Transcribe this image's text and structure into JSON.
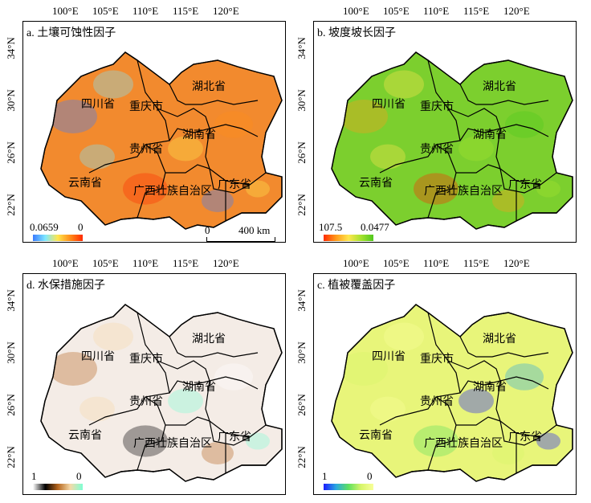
{
  "axes": {
    "lon_ticks": [
      "100°E",
      "105°E",
      "110°E",
      "115°E",
      "120°E"
    ],
    "lat_ticks": [
      "34°N",
      "30°N",
      "26°N",
      "22°N"
    ]
  },
  "provinces": [
    "四川省",
    "重庆市",
    "湖北省",
    "湖南省",
    "贵州省",
    "云南省",
    "广西壮族自治区",
    "广东省"
  ],
  "panels": [
    {
      "id": "a",
      "title": "a. 土壤可蚀性因子",
      "legend_min": "0.0659",
      "legend_max": "0",
      "scale_bar": {
        "zero": "0",
        "distance": "400 km"
      },
      "fill": "#f28a2e",
      "ramp": [
        "#3b7bff",
        "#7ee8ff",
        "#ffe64d",
        "#ff8c1a",
        "#ff2a00"
      ]
    },
    {
      "id": "b",
      "title": "b. 坡度坡长因子",
      "legend_min": "107.5",
      "legend_max": "0.0477",
      "fill": "#7ccf2e",
      "ramp": [
        "#ff2a00",
        "#ff9a1a",
        "#ffe64d",
        "#a6e22e",
        "#4fc81e"
      ]
    },
    {
      "id": "d",
      "title": "d. 水保措施因子",
      "legend_min": "1",
      "legend_max": "0",
      "fill": "#f4ece6",
      "ramp": [
        "#ffffff",
        "#000000",
        "#b5651d",
        "#f5d9a8",
        "#7fffd4"
      ]
    },
    {
      "id": "c",
      "title": "c. 植被覆盖因子",
      "legend_min": "1",
      "legend_max": "0",
      "fill": "#e8f57a",
      "ramp": [
        "#1c1cff",
        "#2aa8e0",
        "#5fe05f",
        "#d7f56a",
        "#f8ff9a"
      ]
    }
  ]
}
